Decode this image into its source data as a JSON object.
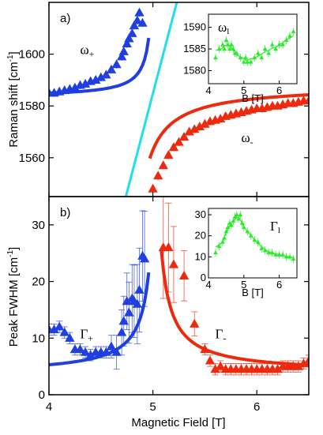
{
  "chart_data": [
    {
      "type": "scatter",
      "panel_label": "a)",
      "xlabel": "",
      "ylabel": "Raman shift [cm-1]",
      "ylabel_unit": "-1",
      "xlim": [
        4,
        6.5
      ],
      "ylim": [
        1545,
        1620
      ],
      "yticks": [
        "1560",
        "1580",
        "1600"
      ],
      "yticks_values": [
        1560,
        1580,
        1600
      ],
      "annotations": [
        {
          "text": "ω+",
          "base": "ω",
          "sub": "+",
          "x": 4.3,
          "y": 1600
        },
        {
          "text": "ω-",
          "base": "ω",
          "sub": "-",
          "x": 5.85,
          "y": 1566
        }
      ],
      "series": [
        {
          "name": "ω+",
          "color": "#1f3fe0",
          "marker": "triangle",
          "x": [
            4.0,
            4.05,
            4.1,
            4.15,
            4.2,
            4.25,
            4.3,
            4.35,
            4.4,
            4.45,
            4.5,
            4.55,
            4.6,
            4.65,
            4.7,
            4.72,
            4.75,
            4.77,
            4.8,
            4.82,
            4.85,
            4.87,
            4.9
          ],
          "y": [
            1585,
            1585,
            1585.5,
            1586,
            1586.5,
            1587,
            1588,
            1588.5,
            1589.5,
            1590,
            1591,
            1592,
            1594,
            1596,
            1599,
            1601,
            1604,
            1606,
            1608,
            1611,
            1613,
            1616,
            1612
          ]
        },
        {
          "name": "ω-",
          "color": "#ee2a0e",
          "marker": "triangle",
          "x": [
            5.0,
            5.05,
            5.1,
            5.15,
            5.2,
            5.25,
            5.3,
            5.35,
            5.4,
            5.45,
            5.5,
            5.55,
            5.6,
            5.65,
            5.7,
            5.75,
            5.8,
            5.85,
            5.9,
            5.95,
            6.0,
            6.05,
            6.1,
            6.15,
            6.2,
            6.25,
            6.3,
            6.35,
            6.4,
            6.45,
            6.5
          ],
          "y": [
            1548,
            1553,
            1557,
            1561,
            1564,
            1566,
            1568,
            1570,
            1571,
            1572,
            1573,
            1574,
            1574.5,
            1575,
            1576,
            1576.5,
            1577,
            1577.5,
            1578,
            1578.5,
            1579,
            1579,
            1579.5,
            1580,
            1580,
            1580.5,
            1581,
            1581,
            1581.5,
            1582,
            1582
          ]
        }
      ],
      "fits": [
        {
          "name": "ω+ fit",
          "color": "#1f3fe0"
        },
        {
          "name": "ω- fit",
          "color": "#ee2a0e"
        },
        {
          "name": "magneto-phonon line",
          "color": "#22ddee"
        }
      ],
      "inset": {
        "label": "ωl",
        "label_base": "ω",
        "label_sub": "l",
        "xlabel": "B [T]",
        "xlim": [
          4,
          6.5
        ],
        "ylim": [
          1577,
          1593
        ],
        "xticks": [
          "4",
          "5",
          "6"
        ],
        "xticks_values": [
          4,
          5,
          6
        ],
        "yticks": [
          "1580",
          "1585",
          "1590"
        ],
        "yticks_values": [
          1580,
          1585,
          1590
        ],
        "color": "#22ee22",
        "x": [
          4.2,
          4.3,
          4.4,
          4.45,
          4.5,
          4.55,
          4.6,
          4.65,
          4.7,
          4.75,
          4.8,
          4.9,
          5.0,
          5.05,
          5.1,
          5.2,
          5.3,
          5.4,
          5.5,
          5.6,
          5.7,
          5.8,
          5.9,
          6.0,
          6.1,
          6.2,
          6.3,
          6.4
        ],
        "y": [
          1583,
          1585,
          1586,
          1585,
          1587,
          1586,
          1585,
          1586,
          1585,
          1584,
          1584,
          1583,
          1582,
          1583,
          1582,
          1582,
          1583,
          1584,
          1583,
          1585,
          1584,
          1586,
          1585,
          1586,
          1586,
          1587,
          1588,
          1589
        ]
      }
    },
    {
      "type": "scatter",
      "panel_label": "b)",
      "xlabel": "Magnetic Field [T]",
      "ylabel": "Peak FWHM [cm-1]",
      "ylabel_unit": "-1",
      "xlim": [
        4,
        6.5
      ],
      "ylim": [
        0,
        35
      ],
      "xticks": [
        "4",
        "5",
        "6"
      ],
      "xticks_values": [
        4,
        5,
        6
      ],
      "yticks": [
        "0",
        "10",
        "20",
        "30"
      ],
      "yticks_values": [
        0,
        10,
        20,
        30
      ],
      "annotations": [
        {
          "text": "Γ+",
          "base": "Γ",
          "sub": "+",
          "x": 4.3,
          "y": 10
        },
        {
          "text": "Γ-",
          "base": "Γ",
          "sub": "-",
          "x": 5.6,
          "y": 10
        }
      ],
      "series": [
        {
          "name": "Γ+",
          "color": "#1f3fe0",
          "marker": "triangle",
          "x": [
            4.0,
            4.05,
            4.1,
            4.15,
            4.2,
            4.25,
            4.3,
            4.35,
            4.4,
            4.45,
            4.5,
            4.55,
            4.6,
            4.65,
            4.7,
            4.72,
            4.75,
            4.77,
            4.8,
            4.82,
            4.85,
            4.87,
            4.9,
            4.92
          ],
          "y": [
            11.5,
            11.5,
            12,
            11,
            10,
            8,
            8,
            7.5,
            7,
            7.5,
            7.5,
            7.5,
            8.5,
            7.5,
            11,
            13,
            16.5,
            14.5,
            17,
            16.5,
            16,
            18.5,
            24.5,
            24
          ]
        },
        {
          "name": "Γ-",
          "color": "#ee2a0e",
          "marker": "triangle",
          "x": [
            5.1,
            5.15,
            5.2,
            5.3,
            5.4,
            5.5,
            5.55,
            5.6,
            5.65,
            5.7,
            5.75,
            5.8,
            5.85,
            5.9,
            5.95,
            6.0,
            6.05,
            6.1,
            6.15,
            6.2,
            6.25,
            6.3,
            6.35,
            6.4,
            6.45,
            6.5
          ],
          "y": [
            26,
            26,
            23,
            21,
            12.5,
            8,
            6,
            4.5,
            5,
            4.5,
            4.5,
            4.5,
            4.5,
            4.5,
            4.5,
            4.5,
            4.5,
            4.5,
            4.5,
            4.5,
            5,
            5,
            5,
            5,
            5.5,
            6
          ]
        }
      ],
      "fits": [
        {
          "name": "Γ+ fit",
          "color": "#1f3fe0"
        },
        {
          "name": "Γ- fit",
          "color": "#ee2a0e"
        }
      ],
      "inset": {
        "label": "Γl",
        "label_base": "Γ",
        "label_sub": "l",
        "xlabel": "B [T]",
        "xlim": [
          4,
          6.5
        ],
        "ylim": [
          0,
          33
        ],
        "xticks": [
          "4",
          "5",
          "6"
        ],
        "xticks_values": [
          4,
          5,
          6
        ],
        "yticks": [
          "0",
          "10",
          "20",
          "30"
        ],
        "yticks_values": [
          0,
          10,
          20,
          30
        ],
        "color": "#22ee22",
        "x": [
          4.2,
          4.3,
          4.4,
          4.45,
          4.5,
          4.55,
          4.6,
          4.65,
          4.7,
          4.75,
          4.8,
          4.85,
          4.9,
          4.95,
          5.0,
          5.1,
          5.2,
          5.3,
          5.4,
          5.5,
          5.6,
          5.7,
          5.8,
          5.9,
          6.0,
          6.1,
          6.2,
          6.3,
          6.4
        ],
        "y": [
          12,
          15,
          17,
          19,
          22,
          24,
          26,
          25,
          27,
          29,
          30,
          28,
          30,
          26,
          24,
          22,
          20,
          18,
          17,
          14,
          13,
          12,
          12,
          11,
          11,
          11,
          10,
          10,
          9
        ]
      }
    }
  ]
}
